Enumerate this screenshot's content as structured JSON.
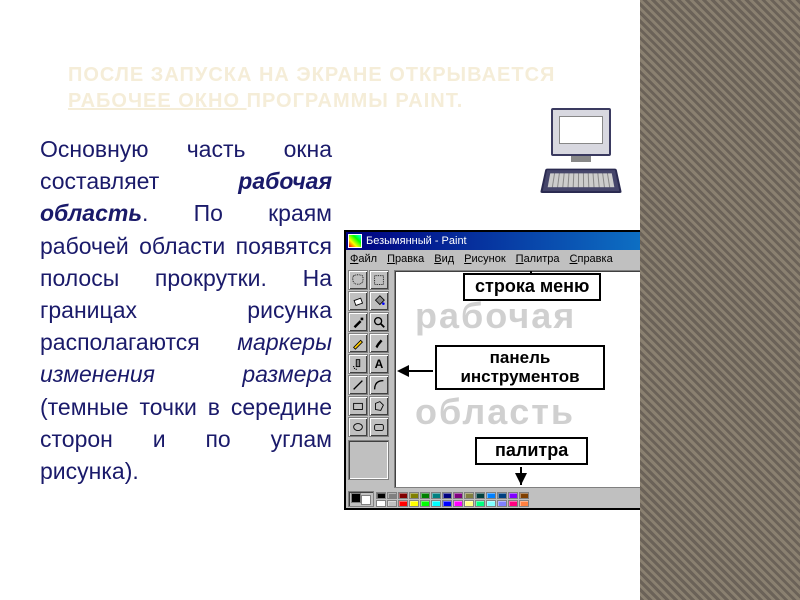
{
  "heading": {
    "line1": "ПОСЛЕ ЗАПУСКА НА ЭКРАНЕ ОТКРЫВАЕТСЯ ",
    "underlined": "РАБОЧЕЕ ОКНО ",
    "line2_rest": "ПРОГРАММЫ PAINT.",
    "color": "#f5edd8"
  },
  "body": {
    "t1": "Основную часть окна составляет ",
    "em1": "рабочая область",
    "t2": ". По краям рабочей области появятся полосы прокрутки. На границах рисунка располагаются ",
    "em2": "маркеры изменения размера",
    "t3": " (темные точки в середине сторон и по углам рисунка).",
    "color": "#1a1a6a",
    "fontsize": 23
  },
  "paint": {
    "title": "Безымянный - Paint",
    "win_buttons": {
      "min": "_",
      "max": "□",
      "close": "×"
    },
    "menu": [
      "Файл",
      "Правка",
      "Вид",
      "Рисунок",
      "Палитра",
      "Справка"
    ],
    "canvas_ghost": {
      "word1": "рабочая",
      "word2": "область",
      "color": "#d0d0d0"
    },
    "labels": {
      "menu": "строка меню",
      "tools": "панель инструментов",
      "palette": "палитра"
    },
    "palette_colors_row1": [
      "#000000",
      "#808080",
      "#800000",
      "#808000",
      "#008000",
      "#008080",
      "#000080",
      "#800080",
      "#808040",
      "#004040",
      "#0080ff",
      "#004080",
      "#8000ff",
      "#804000"
    ],
    "palette_colors_row2": [
      "#ffffff",
      "#c0c0c0",
      "#ff0000",
      "#ffff00",
      "#00ff00",
      "#00ffff",
      "#0000ff",
      "#ff00ff",
      "#ffff80",
      "#00ff80",
      "#80ffff",
      "#8080ff",
      "#ff0080",
      "#ff8040"
    ]
  }
}
